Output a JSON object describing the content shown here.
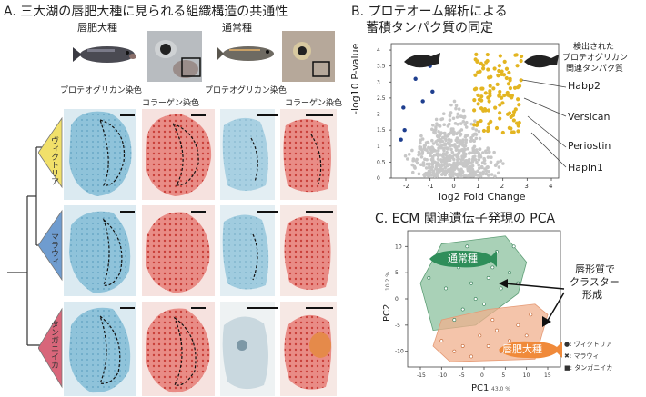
{
  "panelA": {
    "title": "A. 三大湖の唇肥大種に見られる組織構造の共通性",
    "species_hyper": "唇肥大種",
    "species_normal": "通常種",
    "stain_proteoglycan": "プロテオグリカン染色",
    "stain_collagen": "コラーゲン染色",
    "lakes": [
      "ヴィクトリア",
      "マラウィ",
      "タンガニイカ"
    ],
    "lake_colors": [
      "#f1e06a",
      "#6f9ccf",
      "#d8667a"
    ]
  },
  "panelB": {
    "title_line1": "B. プロテオーム解析による",
    "title_line2": "蓄積タンパク質の同定",
    "legend_line1": "検出された",
    "legend_line2": "プロテオグリカン",
    "legend_line3": "関連タンパク質",
    "proteins": [
      "Habp2",
      "Versican",
      "Periostin",
      "Hapln1"
    ]
  },
  "panelC": {
    "title": "C. ECM 関連遺伝子発現の PCA",
    "group_normal": "通常種",
    "group_hyper": "唇肥大種",
    "cluster_line1": "唇形質で",
    "cluster_line2": "クラスター",
    "cluster_line3": "形成",
    "legend": [
      {
        "symbol": "●",
        "label": ": ヴィクトリア"
      },
      {
        "symbol": "✖",
        "label": ": マラウィ"
      },
      {
        "symbol": "■",
        "label": ": タンガニイカ"
      }
    ]
  },
  "chart_data": [
    {
      "type": "scatter",
      "name": "volcano",
      "xlabel": "log2 Fold Change",
      "ylabel": "-log10 P-value",
      "xticks": [
        -2,
        -1,
        0,
        1,
        2,
        3,
        4
      ],
      "yticks": [
        0,
        0.5,
        1,
        1.5,
        2,
        2.5,
        3,
        3.5,
        4
      ],
      "xlim": [
        -2.6,
        4.3
      ],
      "ylim": [
        0,
        4.2
      ],
      "colors": {
        "up": "#e3b521",
        "down": "#1f3f8f",
        "ns": "#c7c7c7"
      },
      "down_points": [
        [
          -2.1,
          2.2
        ],
        [
          -2.05,
          1.5
        ],
        [
          -1.6,
          3.1
        ],
        [
          -1.3,
          2.4
        ],
        [
          -1.0,
          3.5
        ],
        [
          -2.2,
          1.2
        ],
        [
          -0.9,
          2.7
        ]
      ]
    },
    {
      "type": "scatter",
      "name": "pca",
      "xlabel": "PC1",
      "xlabel_pct": "43.0 %",
      "ylabel": "PC2",
      "ylabel_pct": "10.2 %",
      "xticks": [
        -15,
        -10,
        -5,
        0,
        5,
        10,
        15
      ],
      "yticks": [
        -10,
        -5,
        0,
        5,
        10
      ],
      "xlim": [
        -18,
        18
      ],
      "ylim": [
        -13,
        13
      ],
      "normal_hull": [
        [
          -15,
          3
        ],
        [
          -10,
          10.5
        ],
        [
          5,
          12
        ],
        [
          10,
          7
        ],
        [
          8,
          1
        ],
        [
          -2,
          -5
        ],
        [
          -12,
          -6
        ]
      ],
      "hyper_hull": [
        [
          -12,
          -9
        ],
        [
          -8,
          -12
        ],
        [
          12,
          -11.5
        ],
        [
          15,
          -3
        ],
        [
          12,
          -1
        ],
        [
          1,
          -2
        ],
        [
          -10,
          -4
        ]
      ],
      "normal_points": [
        [
          -13,
          4
        ],
        [
          -11,
          8
        ],
        [
          -9,
          2
        ],
        [
          -6,
          6
        ],
        [
          -5,
          -2
        ],
        [
          -4,
          10
        ],
        [
          -3,
          3
        ],
        [
          -1,
          7
        ],
        [
          0,
          -1
        ],
        [
          1,
          4
        ],
        [
          3,
          9
        ],
        [
          4,
          2
        ],
        [
          6,
          5
        ],
        [
          7,
          10
        ],
        [
          -7,
          -4
        ],
        [
          -2,
          0
        ],
        [
          2,
          6
        ],
        [
          8,
          3
        ]
      ],
      "hyper_points": [
        [
          -10,
          -8
        ],
        [
          -7,
          -10
        ],
        [
          -5,
          -9
        ],
        [
          -3,
          -11
        ],
        [
          -1,
          -7
        ],
        [
          1,
          -9
        ],
        [
          3,
          -6
        ],
        [
          4,
          -10
        ],
        [
          6,
          -8
        ],
        [
          8,
          -5
        ],
        [
          10,
          -7
        ],
        [
          11,
          -3
        ],
        [
          12,
          -9
        ],
        [
          9,
          -10
        ],
        [
          2,
          -4
        ]
      ]
    }
  ]
}
